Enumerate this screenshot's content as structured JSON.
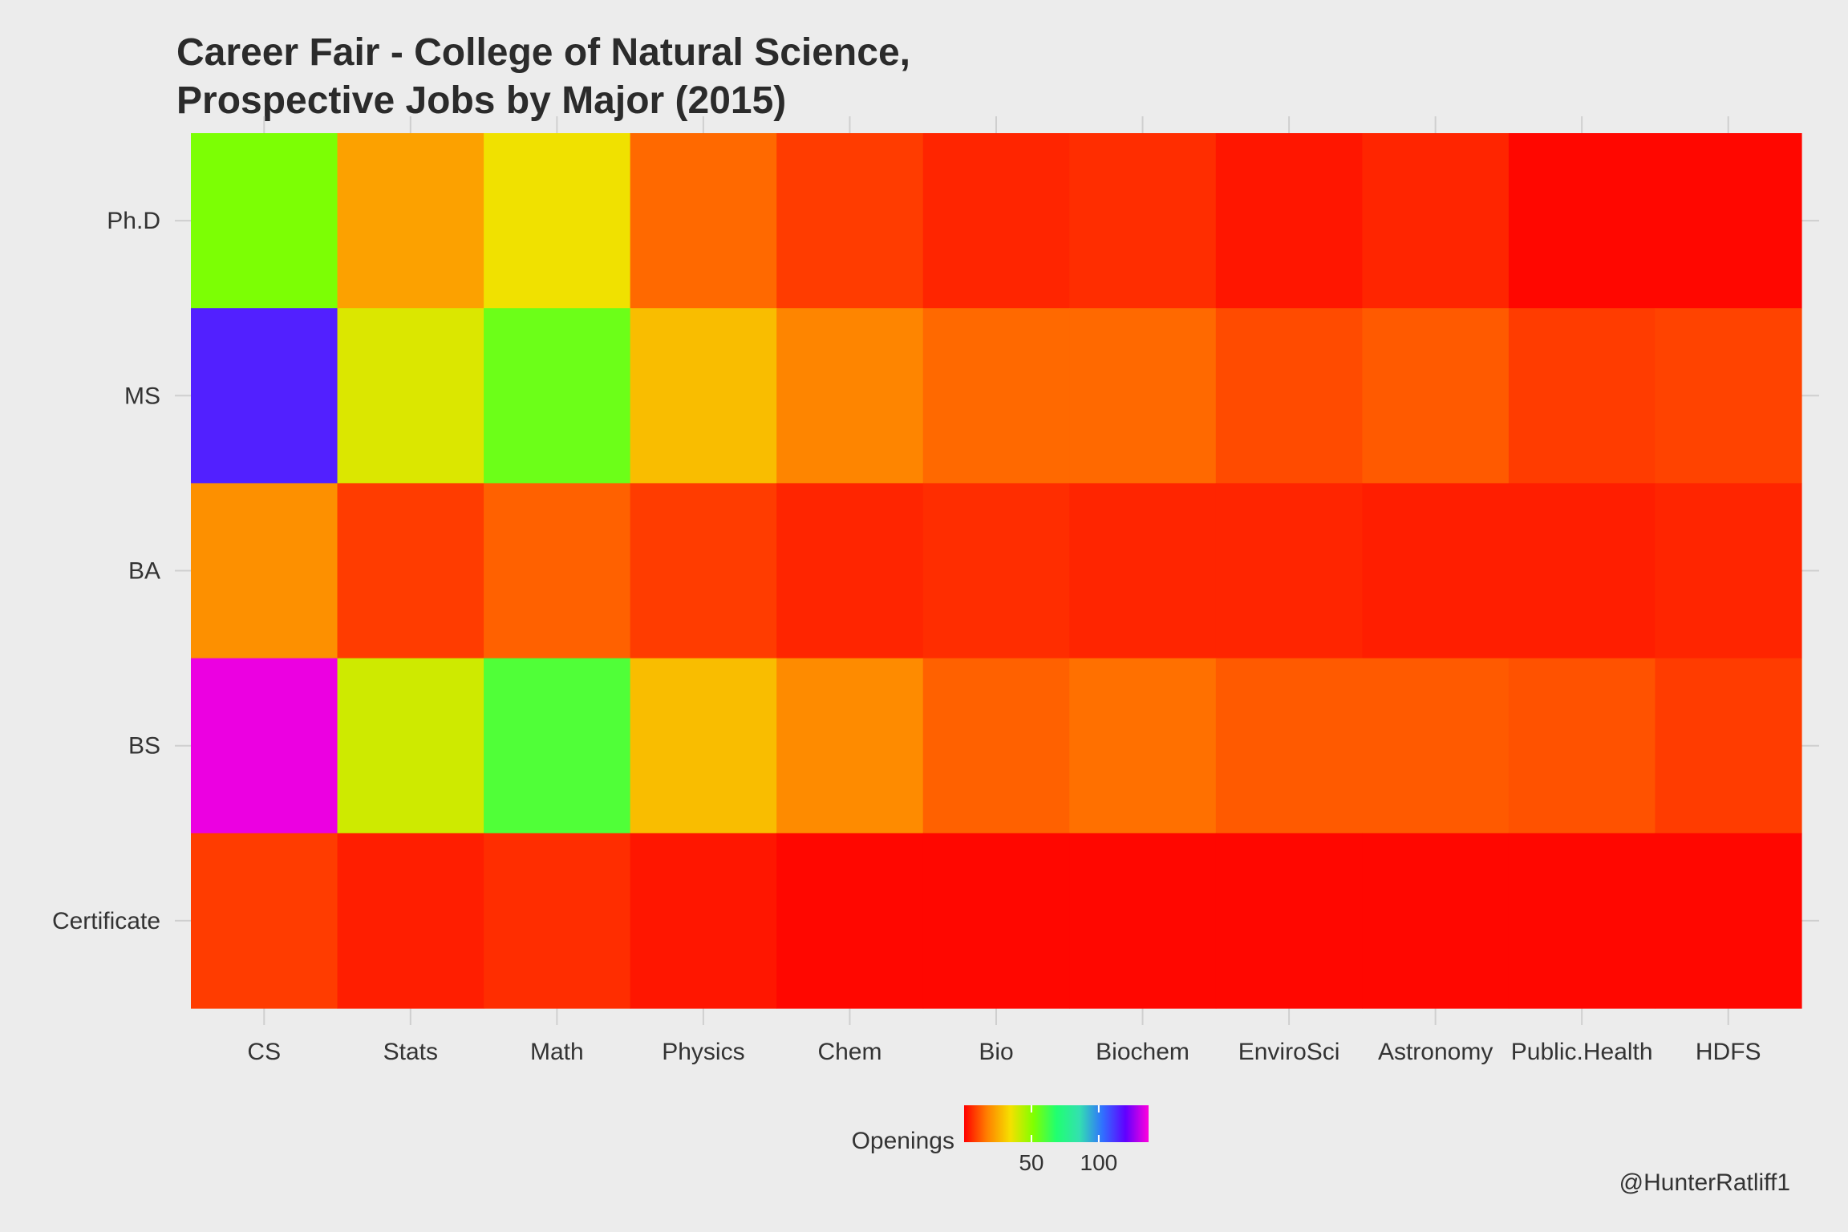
{
  "chart_data": {
    "type": "heatmap",
    "title_lines": [
      "Career Fair - College of Natural Science,",
      "Prospective Jobs by Major (2015)"
    ],
    "x_categories": [
      "CS",
      "Stats",
      "Math",
      "Physics",
      "Chem",
      "Bio",
      "Biochem",
      "EnviroSci",
      "Astronomy",
      "Public.Health",
      "HDFS"
    ],
    "y_categories": [
      "Ph.D",
      "MS",
      "BA",
      "BS",
      "Certificate"
    ],
    "values": [
      [
        52,
        23,
        35,
        14,
        8,
        5,
        6,
        3,
        5,
        1,
        1
      ],
      [
        115,
        38,
        55,
        28,
        18,
        14,
        14,
        10,
        12,
        8,
        9
      ],
      [
        20,
        8,
        13,
        8,
        5,
        6,
        5,
        5,
        4,
        4,
        5
      ],
      [
        135,
        40,
        60,
        28,
        19,
        13,
        15,
        12,
        12,
        11,
        8
      ],
      [
        8,
        4,
        6,
        3,
        1,
        1,
        1,
        1,
        1,
        1,
        1
      ]
    ],
    "legend": {
      "title": "Openings",
      "ticks": [
        50,
        100
      ],
      "range": [
        0,
        137
      ],
      "colors": [
        "#ff0000",
        "#ff8000",
        "#f5e000",
        "#80ff00",
        "#20ff70",
        "#33e0b0",
        "#3070ff",
        "#6000ff",
        "#ff00dd"
      ],
      "position": "bottom"
    },
    "caption": "@HunterRatliff1"
  }
}
